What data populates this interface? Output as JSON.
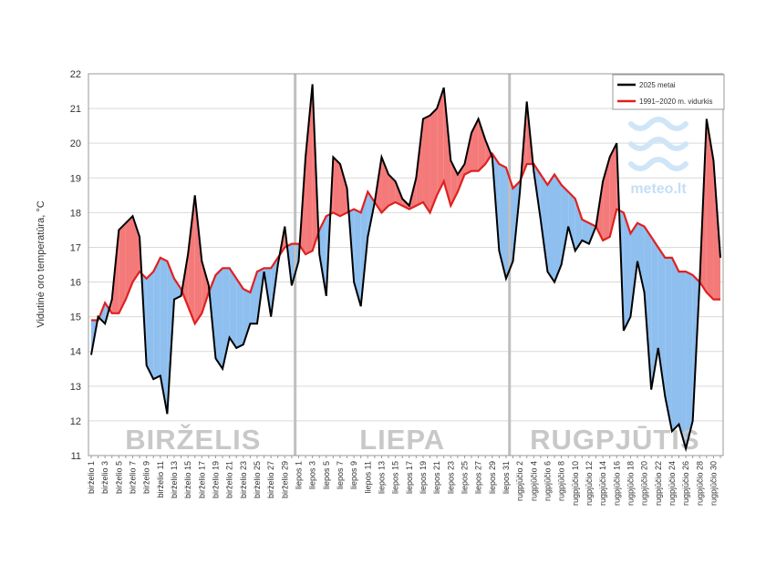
{
  "chart_data": {
    "type": "line",
    "y_label": "Vidutinė oro temperatūra, °C",
    "categories": [
      "birželio 1",
      null,
      "birželio 3",
      null,
      "birželio 5",
      null,
      "birželio 7",
      null,
      "birželio 9",
      null,
      "birželio 11",
      null,
      "birželio 13",
      null,
      "birželio 15",
      null,
      "birželio 17",
      null,
      "birželio 19",
      null,
      "birželio 21",
      null,
      "birželio 23",
      null,
      "birželio 25",
      null,
      "birželio 27",
      null,
      "birželio 29",
      null,
      "liepos 1",
      null,
      "liepos 3",
      null,
      "liepos 5",
      null,
      "liepos 7",
      null,
      "liepos 9",
      null,
      "liepos 11",
      null,
      "liepos 13",
      null,
      "liepos 15",
      null,
      "liepos 17",
      null,
      "liepos 19",
      null,
      "liepos 21",
      null,
      "liepos 23",
      null,
      "liepos 25",
      null,
      "liepos 27",
      null,
      "liepos 29",
      null,
      "liepos 31",
      null,
      "rugpjūčio 2",
      null,
      "rugpjūčio 4",
      null,
      "rugpjūčio 6",
      null,
      "rugpjūčio 8",
      null,
      "rugpjūčio 10",
      null,
      "rugpjūčio 12",
      null,
      "rugpjūčio 14",
      null,
      "rugpjūčio 16",
      null,
      "rugpjūčio 18",
      null,
      "rugpjūčio 20",
      null,
      "rugpjūčio 22",
      null,
      "rugpjūčio 24",
      null,
      "rugpjūčio 26",
      null,
      "rugpjūčio 28",
      null,
      "rugpjūčio 30",
      null
    ],
    "series": [
      {
        "name": "2025 metai",
        "color": "#000000",
        "values": [
          13.9,
          15.0,
          14.8,
          15.5,
          17.5,
          17.7,
          17.9,
          17.3,
          13.6,
          13.2,
          13.3,
          12.2,
          15.5,
          15.6,
          16.8,
          18.5,
          16.6,
          15.9,
          13.8,
          13.5,
          14.4,
          14.1,
          14.2,
          14.8,
          14.8,
          16.3,
          15.0,
          16.5,
          17.6,
          15.9,
          16.6,
          19.6,
          21.7,
          16.8,
          15.6,
          19.6,
          19.4,
          18.7,
          16.0,
          15.3,
          17.3,
          18.3,
          19.6,
          19.1,
          18.9,
          18.4,
          18.2,
          19.0,
          20.7,
          20.8,
          21.0,
          21.6,
          19.5,
          19.1,
          19.4,
          20.3,
          20.7,
          20.1,
          19.6,
          16.9,
          16.1,
          16.6,
          18.6,
          21.2,
          19.2,
          17.8,
          16.3,
          16.0,
          16.5,
          17.6,
          16.9,
          17.2,
          17.1,
          17.6,
          18.9,
          19.6,
          20.0,
          14.6,
          15.0,
          16.6,
          15.7,
          12.9,
          14.1,
          12.7,
          11.7,
          11.9,
          11.2,
          12.0,
          16.0,
          20.7,
          19.5,
          16.7
        ]
      },
      {
        "name": "1991–2020 m. vidurkis",
        "color": "#e02020",
        "values": [
          14.9,
          14.9,
          15.4,
          15.1,
          15.1,
          15.5,
          16.0,
          16.3,
          16.1,
          16.3,
          16.7,
          16.6,
          16.1,
          15.8,
          15.3,
          14.8,
          15.1,
          15.7,
          16.2,
          16.4,
          16.4,
          16.1,
          15.8,
          15.7,
          16.3,
          16.4,
          16.4,
          16.7,
          17.0,
          17.1,
          17.1,
          16.8,
          16.9,
          17.5,
          17.9,
          18.0,
          17.9,
          18.0,
          18.1,
          18.0,
          18.6,
          18.3,
          18.0,
          18.2,
          18.3,
          18.2,
          18.1,
          18.2,
          18.3,
          18.0,
          18.5,
          18.9,
          18.2,
          18.6,
          19.1,
          19.2,
          19.2,
          19.4,
          19.7,
          19.4,
          19.3,
          18.7,
          18.9,
          19.4,
          19.4,
          19.1,
          18.8,
          19.1,
          18.8,
          18.6,
          18.4,
          17.8,
          17.7,
          17.6,
          17.2,
          17.3,
          18.1,
          18.0,
          17.4,
          17.7,
          17.6,
          17.3,
          17.0,
          16.7,
          16.7,
          16.3,
          16.3,
          16.2,
          16.0,
          15.7,
          15.5,
          15.5
        ]
      }
    ],
    "fill_colors": {
      "above": "#f47a7a",
      "below": "#8ebfef"
    },
    "ylim": [
      11,
      22
    ],
    "yticks": [
      11,
      12,
      13,
      14,
      15,
      16,
      17,
      18,
      19,
      20,
      21,
      22
    ],
    "grid": true,
    "legend": "top-right",
    "annotations": [
      {
        "text": "BIRŽELIS"
      },
      {
        "text": "LIEPA"
      },
      {
        "text": "RUGPJŪTIS"
      }
    ],
    "logo": "meteo.lt"
  }
}
